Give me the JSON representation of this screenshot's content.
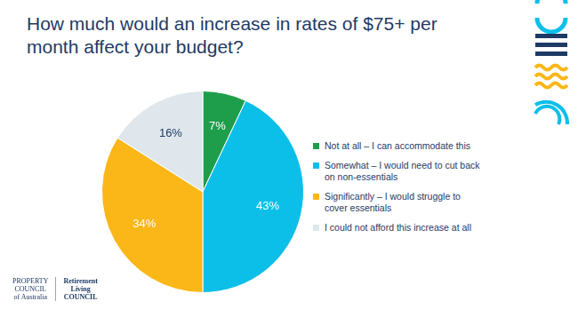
{
  "chart_data": {
    "type": "pie",
    "title": "How much would an increase in rates of $75+ per month affect your budget?",
    "categories": [
      "Not at all – I can accommodate this",
      "Somewhat – I would need to cut back on non-essentials",
      "Significantly – I would struggle to cover essentials",
      "I could not afford this increase at all"
    ],
    "values": [
      7,
      43,
      34,
      16
    ],
    "value_labels": [
      "7%",
      "43%",
      "34%",
      "16%"
    ],
    "colors": [
      "#1e9e4b",
      "#0cbfe9",
      "#fbb617",
      "#dfe7ec"
    ],
    "data_labels": true,
    "legend": "right"
  },
  "logos": [
    [
      "PROPERTY",
      "COUNCIL",
      "of Australia"
    ],
    [
      "Retirement",
      "Living",
      "COUNCIL"
    ]
  ]
}
